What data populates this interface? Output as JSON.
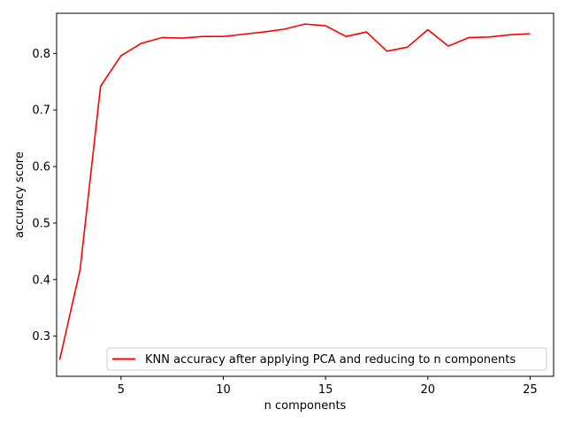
{
  "chart_data": {
    "type": "line",
    "title": "",
    "xlabel": "n components",
    "ylabel": "accuracy score",
    "xlim": [
      1.85,
      26.15
    ],
    "ylim": [
      0.229,
      0.871
    ],
    "xticks": [
      5,
      10,
      15,
      20,
      25
    ],
    "yticks": [
      0.3,
      0.4,
      0.5,
      0.6,
      0.7,
      0.8
    ],
    "grid": false,
    "legend": "lower-right",
    "series": [
      {
        "name": "KNN accuracy after applying PCA and reducing to n components",
        "color": "#ff0000",
        "x": [
          2,
          3,
          4,
          5,
          6,
          7,
          8,
          9,
          10,
          11,
          12,
          13,
          14,
          15,
          16,
          17,
          18,
          19,
          20,
          21,
          22,
          23,
          24,
          25
        ],
        "y": [
          0.258,
          0.418,
          0.742,
          0.796,
          0.818,
          0.828,
          0.827,
          0.83,
          0.83,
          0.834,
          0.838,
          0.843,
          0.852,
          0.849,
          0.83,
          0.838,
          0.804,
          0.811,
          0.842,
          0.813,
          0.828,
          0.829,
          0.833,
          0.835
        ]
      }
    ]
  }
}
